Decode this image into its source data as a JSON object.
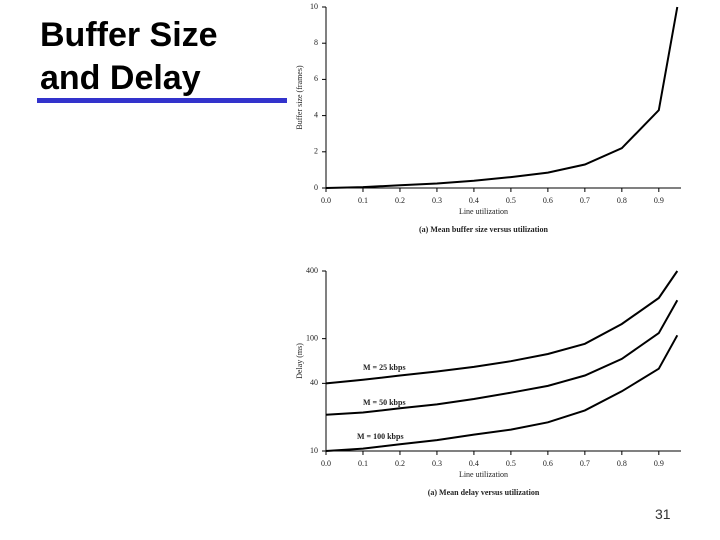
{
  "slide": {
    "title": "Buffer Size and Delay",
    "page_number": "31"
  },
  "chart_data": [
    {
      "type": "line",
      "ylabel": "Buffer size (frames)",
      "xlabel": "Line utilization",
      "caption": "(a) Mean buffer size versus utilization",
      "x": [
        0,
        0.1,
        0.2,
        0.3,
        0.4,
        0.5,
        0.6,
        0.7,
        0.8,
        0.9,
        0.95
      ],
      "values": [
        0,
        0.05,
        0.15,
        0.25,
        0.4,
        0.6,
        0.85,
        1.3,
        2.2,
        4.3,
        10
      ],
      "color": "#000000",
      "xlim": [
        0,
        0.96
      ],
      "xticks": [
        {
          "value": 0,
          "label": "0.0"
        },
        0.1,
        0.2,
        0.3,
        0.4,
        0.5,
        0.6,
        0.7,
        0.8,
        0.9
      ],
      "ylim": [
        0,
        10
      ],
      "yticks": [
        0,
        2,
        4,
        6,
        8,
        10
      ]
    },
    {
      "type": "line",
      "log_y": true,
      "ylabel": "Delay (ms)",
      "xlabel": "Line utilization",
      "caption": "(a) Mean delay versus utilization",
      "x": [
        0,
        0.1,
        0.2,
        0.3,
        0.4,
        0.5,
        0.6,
        0.7,
        0.8,
        0.9,
        0.95
      ],
      "series": [
        {
          "name": "M = 25 kbps",
          "color": "#000000",
          "values": [
            40,
            43,
            47,
            51,
            56,
            63,
            73,
            90,
            135,
            230,
            400
          ]
        },
        {
          "name": "M = 50 kbps",
          "color": "#000000",
          "values": [
            21,
            22,
            24,
            26,
            29,
            33,
            38,
            47,
            66,
            112,
            220
          ]
        },
        {
          "name": "M = 100 kbps",
          "color": "#000000",
          "values": [
            10,
            10.5,
            11.5,
            12.5,
            14,
            15.5,
            18,
            23,
            34,
            54,
            107
          ]
        }
      ],
      "xlim": [
        0,
        0.96
      ],
      "xticks": [
        {
          "value": 0,
          "label": "0.0"
        },
        0.1,
        0.2,
        0.3,
        0.4,
        0.5,
        0.6,
        0.7,
        0.8,
        0.9
      ],
      "ylim": [
        10,
        400
      ],
      "yticks": [
        10,
        40,
        100,
        400
      ]
    }
  ]
}
